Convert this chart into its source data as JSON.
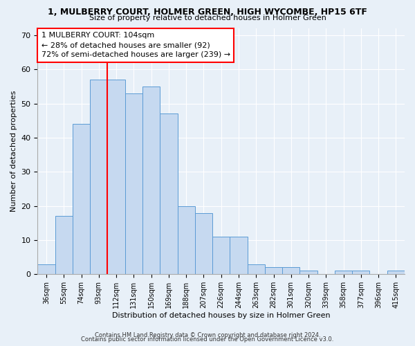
{
  "title": "1, MULBERRY COURT, HOLMER GREEN, HIGH WYCOMBE, HP15 6TF",
  "subtitle": "Size of property relative to detached houses in Holmer Green",
  "xlabel": "Distribution of detached houses by size in Holmer Green",
  "ylabel": "Number of detached properties",
  "bar_labels": [
    "36sqm",
    "55sqm",
    "74sqm",
    "93sqm",
    "112sqm",
    "131sqm",
    "150sqm",
    "169sqm",
    "188sqm",
    "207sqm",
    "226sqm",
    "244sqm",
    "263sqm",
    "282sqm",
    "301sqm",
    "320sqm",
    "339sqm",
    "358sqm",
    "377sqm",
    "396sqm",
    "415sqm"
  ],
  "bar_values": [
    3,
    17,
    44,
    57,
    57,
    53,
    55,
    47,
    20,
    18,
    11,
    11,
    3,
    2,
    2,
    1,
    0,
    1,
    1,
    0,
    1
  ],
  "bar_color": "#c6d9f0",
  "bar_edge_color": "#5b9bd5",
  "annotation_title": "1 MULBERRY COURT: 104sqm",
  "annotation_line1": "← 28% of detached houses are smaller (92)",
  "annotation_line2": "72% of semi-detached houses are larger (239) →",
  "ylim": [
    0,
    72
  ],
  "yticks": [
    0,
    10,
    20,
    30,
    40,
    50,
    60,
    70
  ],
  "footer1": "Contains HM Land Registry data © Crown copyright and database right 2024.",
  "footer2": "Contains public sector information licensed under the Open Government Licence v3.0.",
  "bg_color": "#e8f0f8",
  "plot_bg_color": "#e8f0f8",
  "title_fontsize": 9,
  "subtitle_fontsize": 8
}
